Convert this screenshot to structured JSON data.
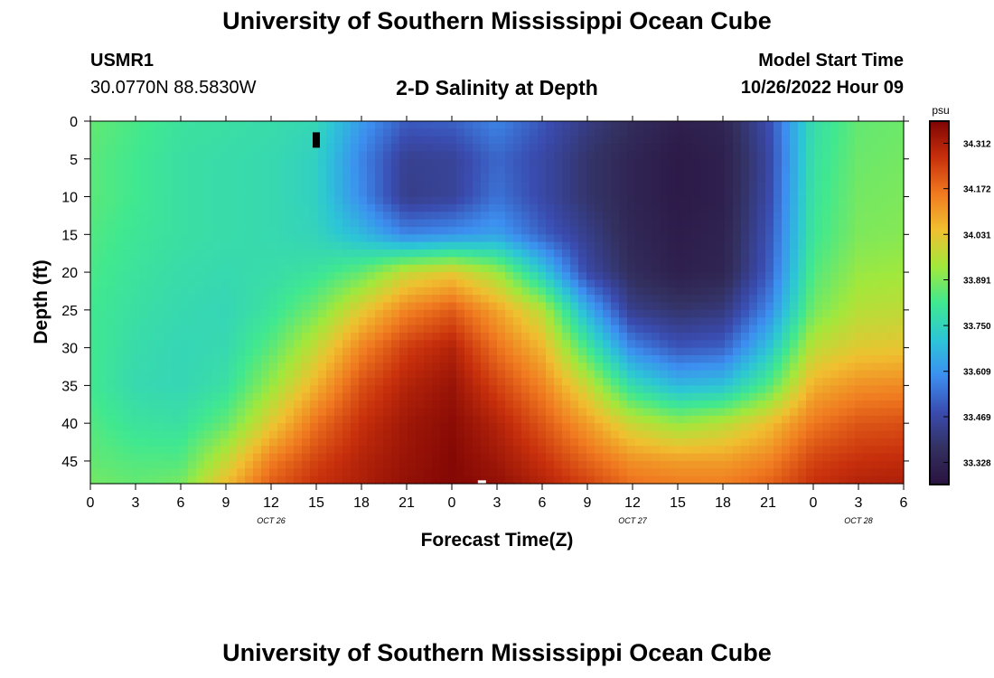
{
  "header": {
    "title": "University of Southern Mississippi Ocean Cube",
    "station_id": "USMR1",
    "station_coords": "30.0770N  88.5830W",
    "model_start_label": "Model Start Time",
    "model_start_value": "10/26/2022 Hour 09"
  },
  "footer": {
    "title": "University of Southern Mississippi Ocean Cube"
  },
  "chart_data": {
    "type": "heatmap",
    "title": "2-D Salinity at Depth",
    "xlabel": "Forecast Time(Z)",
    "ylabel": "Depth (ft)",
    "xlim": [
      0,
      54
    ],
    "ylim": [
      0,
      48
    ],
    "x_ticks": [
      0,
      3,
      6,
      9,
      12,
      15,
      18,
      21,
      24,
      27,
      30,
      33,
      36,
      39,
      42,
      45,
      48,
      51,
      54
    ],
    "x_tick_labels": [
      "0",
      "3",
      "6",
      "9",
      "12",
      "15",
      "18",
      "21",
      "0",
      "3",
      "6",
      "9",
      "12",
      "15",
      "18",
      "21",
      "0",
      "3",
      "6"
    ],
    "y_ticks": [
      0,
      5,
      10,
      15,
      20,
      25,
      30,
      35,
      40,
      45
    ],
    "y_tick_labels": [
      "0",
      "5",
      "10",
      "15",
      "20",
      "25",
      "30",
      "35",
      "40",
      "45"
    ],
    "date_labels": [
      {
        "x": 12,
        "label": "OCT 26"
      },
      {
        "x": 36,
        "label": "OCT 27"
      },
      {
        "x": 51,
        "label": "OCT 28"
      }
    ],
    "colorbar": {
      "unit": "psu",
      "min": 33.26,
      "max": 34.38,
      "tick_values": [
        34.312,
        34.172,
        34.031,
        33.891,
        33.75,
        33.609,
        33.469,
        33.328
      ],
      "tick_labels": [
        "34.312",
        "34.172",
        "34.031",
        "33.891",
        "33.750",
        "33.609",
        "33.469",
        "33.328"
      ],
      "colors": [
        "#2a1240",
        "#33305f",
        "#3a4cb0",
        "#3c8ff0",
        "#2cc6d6",
        "#40e890",
        "#a2e83c",
        "#f0c030",
        "#f07a20",
        "#c8300c",
        "#7e0404"
      ]
    },
    "salinity_field": {
      "depths_ft": [
        0,
        5,
        10,
        15,
        20,
        25,
        30,
        35,
        40,
        45,
        48
      ],
      "times_h": [
        0,
        3,
        6,
        9,
        12,
        15,
        18,
        21,
        24,
        27,
        30,
        33,
        36,
        39,
        42,
        45,
        48,
        51,
        54
      ],
      "values_psu": [
        [
          33.86,
          33.83,
          33.8,
          33.79,
          33.78,
          33.76,
          33.62,
          33.51,
          33.52,
          33.58,
          33.5,
          33.42,
          33.36,
          33.31,
          33.33,
          33.48,
          33.78,
          33.86,
          33.87
        ],
        [
          33.85,
          33.82,
          33.79,
          33.78,
          33.77,
          33.74,
          33.58,
          33.44,
          33.45,
          33.53,
          33.47,
          33.39,
          33.33,
          33.29,
          33.31,
          33.46,
          33.79,
          33.87,
          33.88
        ],
        [
          33.85,
          33.82,
          33.79,
          33.78,
          33.77,
          33.74,
          33.59,
          33.43,
          33.45,
          33.55,
          33.47,
          33.39,
          33.33,
          33.29,
          33.31,
          33.47,
          33.8,
          33.88,
          33.89
        ],
        [
          33.84,
          33.81,
          33.79,
          33.78,
          33.77,
          33.75,
          33.68,
          33.58,
          33.6,
          33.63,
          33.52,
          33.43,
          33.34,
          33.3,
          33.32,
          33.49,
          33.81,
          33.89,
          33.9
        ],
        [
          33.83,
          33.8,
          33.78,
          33.77,
          33.78,
          33.8,
          33.86,
          33.98,
          34.02,
          33.93,
          33.72,
          33.47,
          33.36,
          33.31,
          33.33,
          33.51,
          33.84,
          33.92,
          33.93
        ],
        [
          33.82,
          33.79,
          33.77,
          33.76,
          33.8,
          33.88,
          34.02,
          34.14,
          34.2,
          34.09,
          33.96,
          33.66,
          33.43,
          33.39,
          33.41,
          33.58,
          33.88,
          33.96,
          33.97
        ],
        [
          33.82,
          33.78,
          33.76,
          33.77,
          33.85,
          33.98,
          34.14,
          34.25,
          34.3,
          34.17,
          34.06,
          33.82,
          33.58,
          33.5,
          33.52,
          33.7,
          33.97,
          34.02,
          34.03
        ],
        [
          33.82,
          33.77,
          33.76,
          33.79,
          33.92,
          34.07,
          34.22,
          34.3,
          34.34,
          34.24,
          34.14,
          33.98,
          33.77,
          33.68,
          33.7,
          33.84,
          34.07,
          34.12,
          34.13
        ],
        [
          33.84,
          33.8,
          33.79,
          33.86,
          34.02,
          34.17,
          34.27,
          34.33,
          34.36,
          34.3,
          34.21,
          34.1,
          33.98,
          33.92,
          33.96,
          34.04,
          34.16,
          34.21,
          34.22
        ],
        [
          33.86,
          33.84,
          33.84,
          33.98,
          34.15,
          34.24,
          34.3,
          34.34,
          34.37,
          34.33,
          34.27,
          34.19,
          34.12,
          34.1,
          34.1,
          34.14,
          34.24,
          34.27,
          34.28
        ],
        [
          33.88,
          33.86,
          33.88,
          34.05,
          34.2,
          34.27,
          34.31,
          34.35,
          34.37,
          34.35,
          34.3,
          34.24,
          34.17,
          34.15,
          34.15,
          34.19,
          34.27,
          34.3,
          34.31
        ]
      ]
    },
    "markers": [
      {
        "x": 15.0,
        "depth": 2.5,
        "color": "#000000"
      },
      {
        "x": 26.0,
        "depth": 47.8,
        "color": "#ffffff"
      }
    ]
  }
}
